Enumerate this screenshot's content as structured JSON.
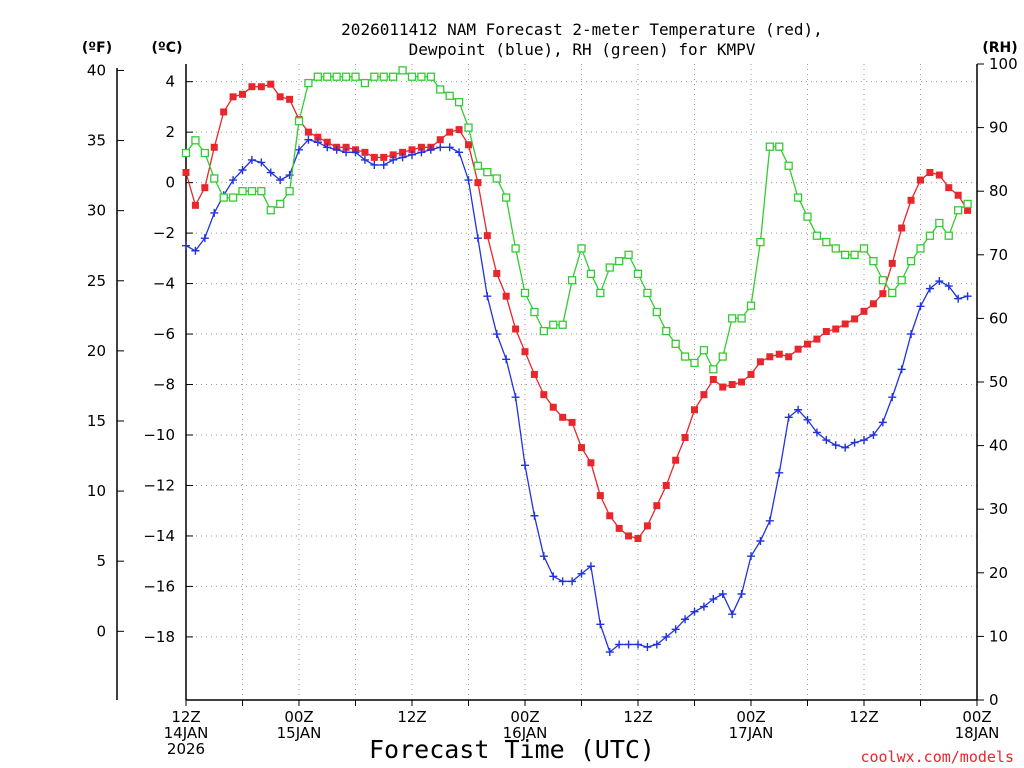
{
  "chart_data": {
    "type": "line",
    "title_line1": "2026011412 NAM Forecast 2-meter Temperature (red),",
    "title_line2": "Dewpoint (blue), RH (green) for KMPV",
    "xlabel": "Forecast Time (UTC)",
    "credit": "coolwx.com/models",
    "units": {
      "fahrenheit": "(ºF)",
      "celsius": "(ºC)",
      "rh": "(RH)"
    },
    "xlim": [
      0,
      84
    ],
    "celsius_lim": [
      -20.5,
      4.7
    ],
    "rh_lim": [
      0,
      100
    ],
    "fahrenheit_ticks": [
      "40",
      "35",
      "30",
      "25",
      "20",
      "15",
      "10",
      "5",
      "0"
    ],
    "celsius_ticks": [
      "4",
      "2",
      "0",
      "−2",
      "−4",
      "−6",
      "−8",
      "−10",
      "−12",
      "−14",
      "−16",
      "−18"
    ],
    "rh_ticks": [
      "100",
      "90",
      "80",
      "70",
      "60",
      "50",
      "40",
      "30",
      "20",
      "10",
      "0"
    ],
    "x_ticks": [
      {
        "hour": "12Z",
        "day": "14JAN",
        "year": "2026"
      },
      {
        "hour": "00Z",
        "day": "15JAN",
        "year": ""
      },
      {
        "hour": "12Z",
        "day": "",
        "year": ""
      },
      {
        "hour": "00Z",
        "day": "16JAN",
        "year": ""
      },
      {
        "hour": "12Z",
        "day": "",
        "year": ""
      },
      {
        "hour": "00Z",
        "day": "17JAN",
        "year": ""
      },
      {
        "hour": "12Z",
        "day": "",
        "year": ""
      },
      {
        "hour": "00Z",
        "day": "18JAN",
        "year": ""
      }
    ],
    "series": [
      {
        "name": "2-meter Temperature",
        "units": "C",
        "color": "#e8262c",
        "marker": "square-filled",
        "values": [
          0.4,
          -0.9,
          -0.2,
          1.4,
          2.8,
          3.4,
          3.5,
          3.8,
          3.8,
          3.9,
          3.4,
          3.3,
          2.5,
          2.0,
          1.8,
          1.6,
          1.4,
          1.4,
          1.3,
          1.2,
          1.0,
          1.0,
          1.1,
          1.2,
          1.3,
          1.4,
          1.4,
          1.7,
          2.0,
          2.1,
          1.5,
          0.0,
          -2.1,
          -3.6,
          -4.5,
          -5.8,
          -6.7,
          -7.6,
          -8.4,
          -8.9,
          -9.3,
          -9.5,
          -10.5,
          -11.1,
          -12.4,
          -13.2,
          -13.7,
          -14.0,
          -14.1,
          -13.6,
          -12.8,
          -12.0,
          -11.0,
          -10.1,
          -9.0,
          -8.4,
          -7.8,
          -8.1,
          -8.0,
          -7.9,
          -7.6,
          -7.1,
          -6.9,
          -6.8,
          -6.9,
          -6.6,
          -6.4,
          -6.2,
          -5.9,
          -5.8,
          -5.6,
          -5.4,
          -5.1,
          -4.8,
          -4.4,
          -3.2,
          -1.8,
          -0.7,
          0.1,
          0.4,
          0.3,
          -0.2,
          -0.5,
          -1.1
        ]
      },
      {
        "name": "Dewpoint",
        "units": "C",
        "color": "#2233dd",
        "marker": "plus",
        "values": [
          -2.5,
          -2.7,
          -2.2,
          -1.2,
          -0.5,
          0.1,
          0.5,
          0.9,
          0.8,
          0.4,
          0.1,
          0.3,
          1.3,
          1.7,
          1.6,
          1.4,
          1.3,
          1.2,
          1.2,
          0.9,
          0.7,
          0.7,
          0.9,
          1.0,
          1.1,
          1.2,
          1.3,
          1.4,
          1.4,
          1.2,
          0.1,
          -2.2,
          -4.5,
          -6.0,
          -7.0,
          -8.5,
          -11.2,
          -13.2,
          -14.8,
          -15.6,
          -15.8,
          -15.8,
          -15.5,
          -15.2,
          -17.5,
          -18.6,
          -18.3,
          -18.3,
          -18.3,
          -18.4,
          -18.3,
          -18.0,
          -17.7,
          -17.3,
          -17.0,
          -16.8,
          -16.5,
          -16.3,
          -17.1,
          -16.3,
          -14.8,
          -14.2,
          -13.4,
          -11.5,
          -9.3,
          -9.0,
          -9.4,
          -9.9,
          -10.2,
          -10.4,
          -10.5,
          -10.3,
          -10.2,
          -10.0,
          -9.5,
          -8.5,
          -7.4,
          -6.0,
          -4.9,
          -4.2,
          -3.9,
          -4.1,
          -4.6,
          -4.5
        ]
      },
      {
        "name": "RH",
        "units": "%",
        "color": "#33cc33",
        "marker": "square-open",
        "values": [
          86,
          88,
          86,
          82,
          79,
          79,
          80,
          80,
          80,
          77,
          78,
          80,
          91,
          97,
          98,
          98,
          98,
          98,
          98,
          97,
          98,
          98,
          98,
          99,
          98,
          98,
          98,
          96,
          95,
          94,
          90,
          84,
          83,
          82,
          79,
          71,
          64,
          61,
          58,
          59,
          59,
          66,
          71,
          67,
          64,
          68,
          69,
          70,
          67,
          64,
          61,
          58,
          56,
          54,
          53,
          55,
          52,
          54,
          60,
          60,
          62,
          72,
          87,
          87,
          84,
          79,
          76,
          73,
          72,
          71,
          70,
          70,
          71,
          69,
          66,
          64,
          66,
          69,
          71,
          73,
          75,
          73,
          77,
          78
        ]
      }
    ]
  }
}
